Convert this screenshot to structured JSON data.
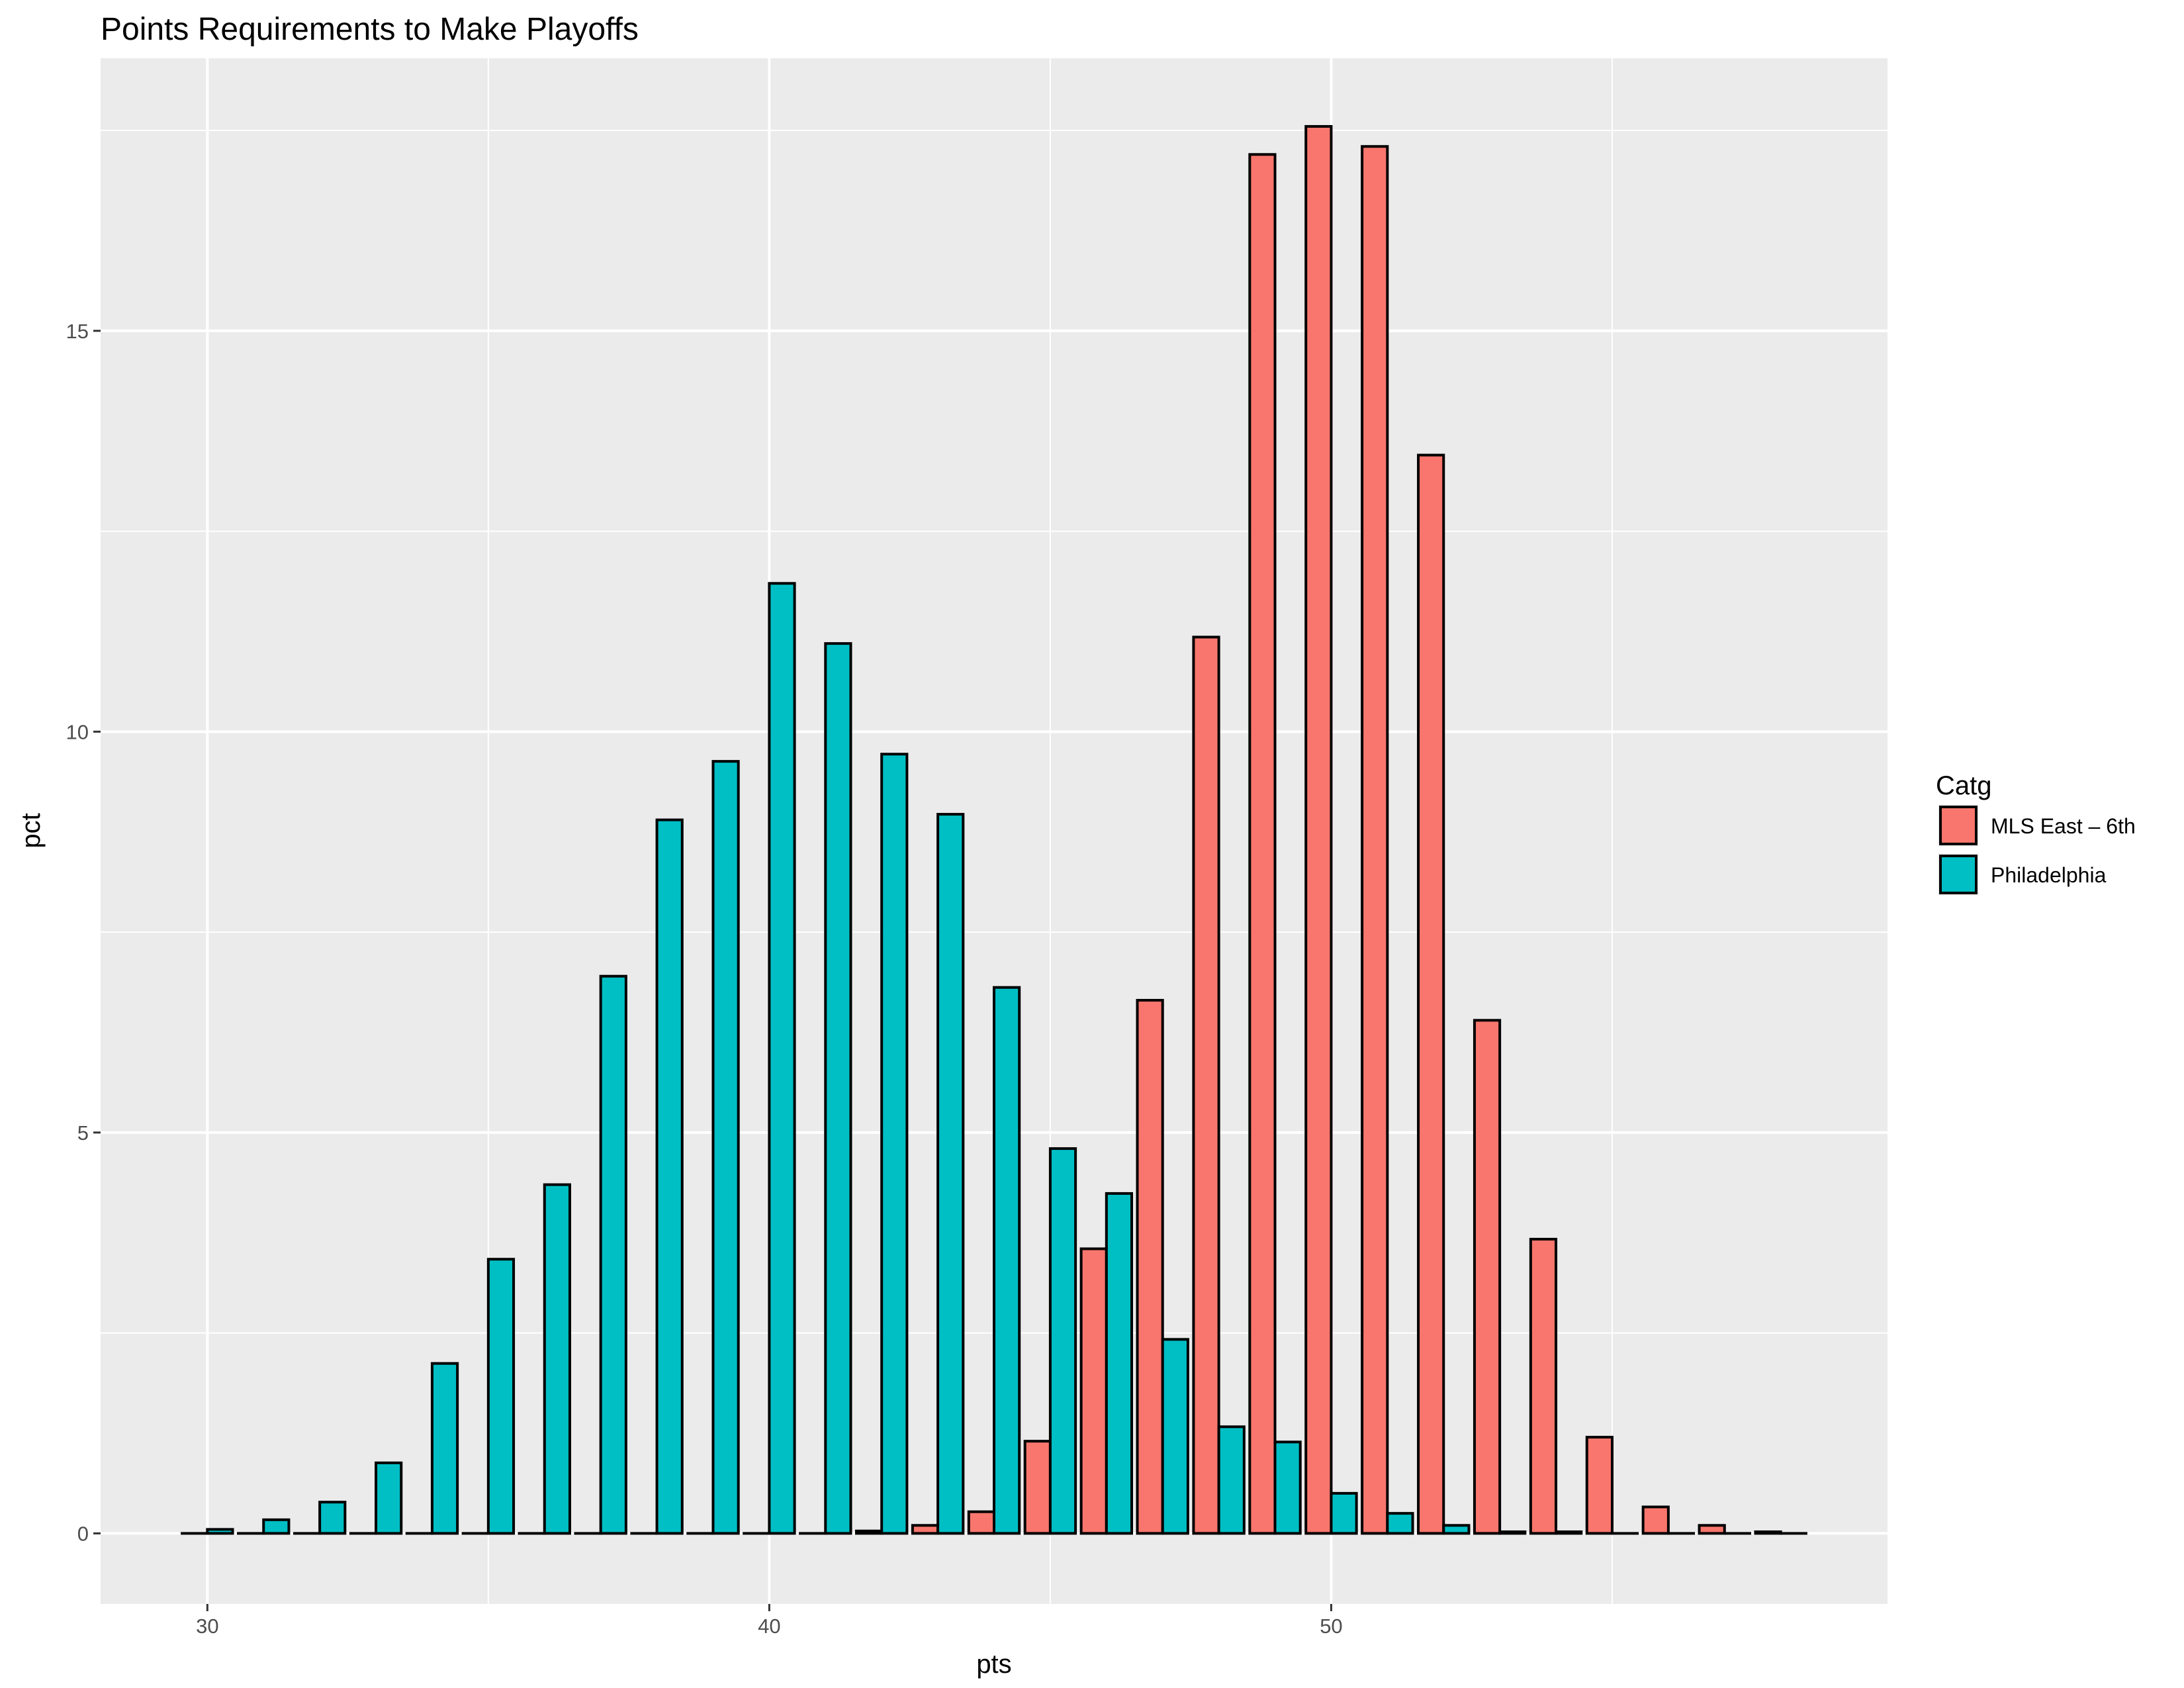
{
  "chart_data": {
    "type": "bar",
    "title": "Points Requirements to Make Playoffs",
    "xlabel": "pts",
    "ylabel": "pct",
    "xlim": [
      28.1,
      59.9
    ],
    "ylim": [
      -0.88,
      18.4
    ],
    "x_ticks": [
      30,
      40,
      50
    ],
    "y_ticks": [
      0,
      5,
      10,
      15
    ],
    "grid": true,
    "legend": {
      "title": "Catg",
      "position": "right"
    },
    "categories": [
      30,
      31,
      32,
      33,
      34,
      35,
      36,
      37,
      38,
      39,
      40,
      41,
      42,
      43,
      44,
      45,
      46,
      47,
      48,
      49,
      50,
      51,
      52,
      53,
      54,
      55,
      56,
      57,
      58
    ],
    "series": [
      {
        "name": "MLS East – 6th",
        "color": "#F8766D",
        "values": [
          0,
          0,
          0,
          0,
          0,
          0,
          0,
          0,
          0,
          0,
          0,
          0,
          0.03,
          0.1,
          0.27,
          1.15,
          3.55,
          6.65,
          11.18,
          17.2,
          17.55,
          17.3,
          13.45,
          6.4,
          3.67,
          1.2,
          0.33,
          0.1,
          0.02
        ]
      },
      {
        "name": "Philadelphia",
        "color": "#00BFC4",
        "values": [
          0.05,
          0.17,
          0.39,
          0.88,
          2.12,
          3.42,
          4.35,
          6.95,
          8.9,
          9.63,
          11.85,
          11.1,
          9.72,
          8.97,
          6.81,
          4.8,
          4.24,
          2.42,
          1.33,
          1.14,
          0.5,
          0.25,
          0.1,
          0.02,
          0.02,
          0,
          0,
          0,
          0
        ]
      }
    ]
  }
}
